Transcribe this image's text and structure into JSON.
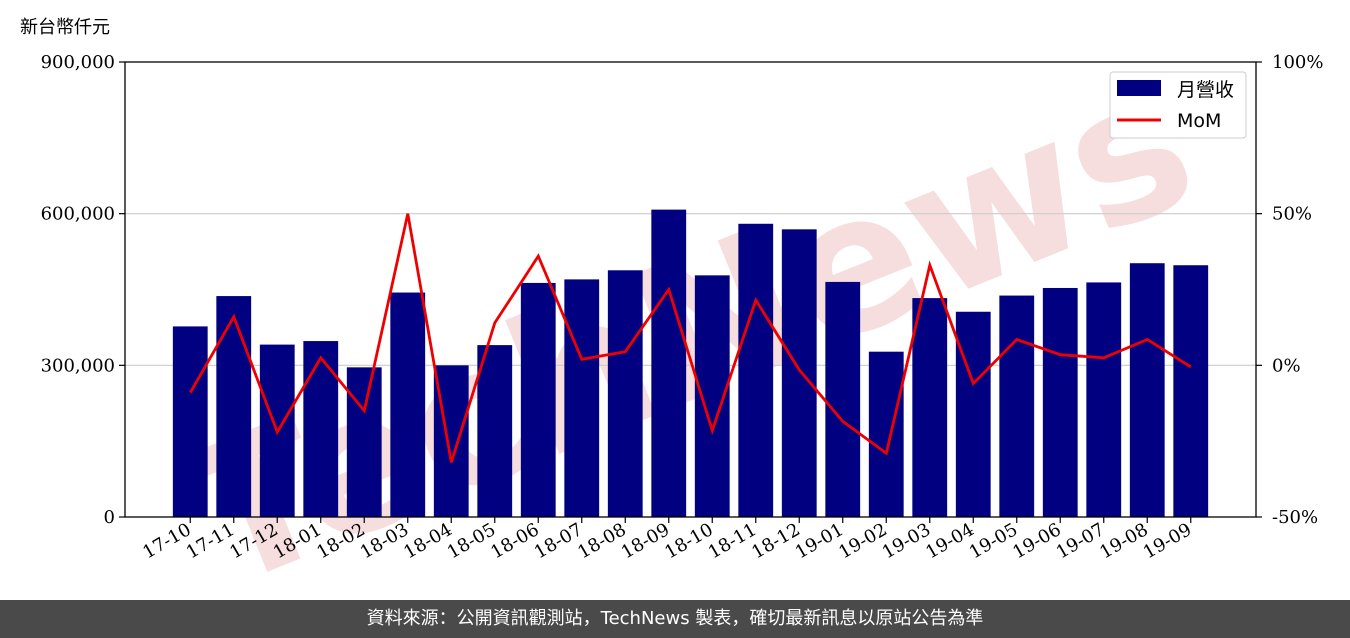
{
  "y_unit_label": "新台幣仟元",
  "watermark_text": "TechNews",
  "footer_text": "資料來源：公開資訊觀測站，TechNews 製表，確切最新訊息以原站公告為準",
  "colors": {
    "bar": "#000080",
    "line": "#ee0000",
    "grid": "#cccccc",
    "footer_bg": "#4a4a4a"
  },
  "chart_data": {
    "type": "bar",
    "categories": [
      "17-10",
      "17-11",
      "17-12",
      "18-01",
      "18-02",
      "18-03",
      "18-04",
      "18-05",
      "18-06",
      "18-07",
      "18-08",
      "18-09",
      "18-10",
      "18-11",
      "18-12",
      "19-01",
      "19-02",
      "19-03",
      "19-04",
      "19-05",
      "19-06",
      "19-07",
      "19-08",
      "19-09"
    ],
    "series": [
      {
        "name": "月營收",
        "type": "bar",
        "axis": "left",
        "values": [
          377000,
          437000,
          341000,
          348000,
          296000,
          444000,
          300000,
          340000,
          463000,
          470000,
          488000,
          608000,
          478000,
          580000,
          569000,
          465000,
          327000,
          433000,
          406000,
          438000,
          453000,
          464000,
          502000,
          498000
        ]
      },
      {
        "name": "MoM",
        "type": "line",
        "axis": "right",
        "values": [
          -9,
          16,
          -22,
          2.5,
          -15,
          50,
          -32,
          14,
          36,
          2,
          4.5,
          25,
          -21.5,
          21.5,
          -1.5,
          -18.5,
          -29,
          33,
          -6,
          8.5,
          3.5,
          2.5,
          8.5,
          -0.5
        ]
      }
    ],
    "ylim_left": [
      0,
      900000
    ],
    "yticks_left": [
      "0",
      "300,000",
      "600,000",
      "900,000"
    ],
    "ylim_right": [
      -50,
      100
    ],
    "yticks_right": [
      "-50%",
      "0%",
      "50%",
      "100%"
    ],
    "grid": "horizontal",
    "legend_position": "top-right"
  }
}
